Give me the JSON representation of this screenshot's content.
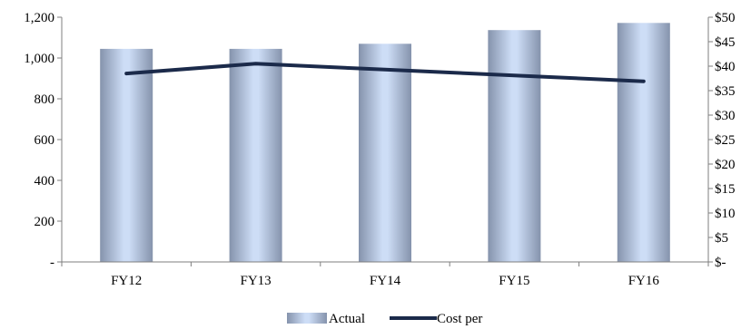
{
  "chart_data": {
    "type": "bar",
    "categories": [
      "FY12",
      "FY13",
      "FY14",
      "FY15",
      "FY16"
    ],
    "series": [
      {
        "name": "Actual",
        "type": "bar",
        "axis": "left",
        "values": [
          1045,
          1045,
          1070,
          1137,
          1172
        ],
        "color": "#b8c8e4"
      },
      {
        "name": "Cost per",
        "type": "line",
        "axis": "right",
        "values": [
          38.5,
          40.5,
          39.3,
          38.1,
          36.9
        ],
        "color": "#1b2a4a"
      }
    ],
    "y_left": {
      "ylim": [
        0,
        1200
      ],
      "ticks": [
        0,
        200,
        400,
        600,
        800,
        1000,
        1200
      ],
      "tick_labels": [
        "-",
        "200",
        "400",
        "600",
        "800",
        "1,000",
        "1,200"
      ]
    },
    "y_right": {
      "ylim": [
        0,
        50
      ],
      "ticks": [
        0,
        5,
        10,
        15,
        20,
        25,
        30,
        35,
        40,
        45,
        50
      ],
      "tick_labels": [
        "$-",
        "$5",
        "$10",
        "$15",
        "$20",
        "$25",
        "$30",
        "$35",
        "$40",
        "$45",
        "$50"
      ]
    },
    "grid": false,
    "legend_placement": "bottom",
    "title": "",
    "xlabel": "",
    "ylabel": ""
  }
}
